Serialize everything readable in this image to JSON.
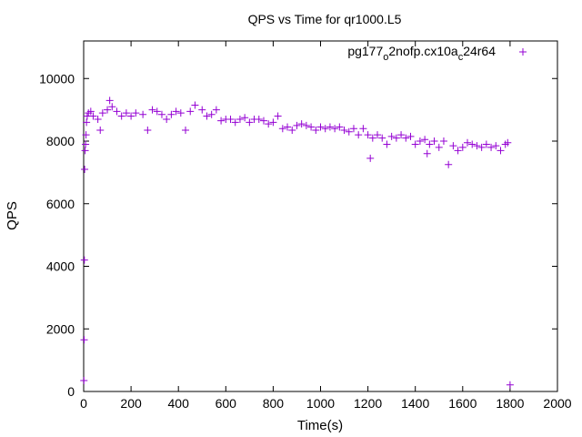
{
  "chart_data": {
    "type": "scatter",
    "title": "QPS vs Time for qr1000.L5",
    "xlabel": "Time(s)",
    "ylabel": "QPS",
    "xlim": [
      0,
      2000
    ],
    "ylim": [
      0,
      11200
    ],
    "xticks": [
      0,
      200,
      400,
      600,
      800,
      1000,
      1200,
      1400,
      1600,
      1800,
      2000
    ],
    "yticks": [
      0,
      2000,
      4000,
      6000,
      8000,
      10000
    ],
    "legend_position": "top-right",
    "series": [
      {
        "name": "pg177_o2nofp.cx10a_c24r64",
        "name_parts": {
          "base": "pg177",
          "sub1": "o",
          "mid": "2nofp.cx10a",
          "sub2": "c",
          "tail": "24r64"
        },
        "color": "#9400d3",
        "marker": "plus",
        "points": [
          [
            1,
            350
          ],
          [
            2,
            1650
          ],
          [
            3,
            4200
          ],
          [
            4,
            7100
          ],
          [
            6,
            7700
          ],
          [
            8,
            7900
          ],
          [
            10,
            8200
          ],
          [
            12,
            8600
          ],
          [
            15,
            8800
          ],
          [
            20,
            8900
          ],
          [
            30,
            8950
          ],
          [
            40,
            8800
          ],
          [
            60,
            8700
          ],
          [
            70,
            8350
          ],
          [
            80,
            8900
          ],
          [
            100,
            9000
          ],
          [
            110,
            9300
          ],
          [
            120,
            9100
          ],
          [
            140,
            8950
          ],
          [
            160,
            8800
          ],
          [
            180,
            8900
          ],
          [
            200,
            8800
          ],
          [
            220,
            8900
          ],
          [
            250,
            8850
          ],
          [
            270,
            8350
          ],
          [
            290,
            9000
          ],
          [
            310,
            8950
          ],
          [
            330,
            8850
          ],
          [
            350,
            8700
          ],
          [
            370,
            8850
          ],
          [
            390,
            8950
          ],
          [
            410,
            8900
          ],
          [
            430,
            8350
          ],
          [
            450,
            8950
          ],
          [
            470,
            9150
          ],
          [
            500,
            9000
          ],
          [
            520,
            8800
          ],
          [
            540,
            8850
          ],
          [
            560,
            9000
          ],
          [
            580,
            8650
          ],
          [
            600,
            8700
          ],
          [
            620,
            8700
          ],
          [
            640,
            8600
          ],
          [
            660,
            8700
          ],
          [
            680,
            8750
          ],
          [
            700,
            8600
          ],
          [
            720,
            8700
          ],
          [
            740,
            8700
          ],
          [
            760,
            8650
          ],
          [
            780,
            8550
          ],
          [
            800,
            8600
          ],
          [
            820,
            8800
          ],
          [
            840,
            8400
          ],
          [
            860,
            8450
          ],
          [
            880,
            8350
          ],
          [
            900,
            8500
          ],
          [
            920,
            8550
          ],
          [
            940,
            8500
          ],
          [
            960,
            8450
          ],
          [
            980,
            8350
          ],
          [
            1000,
            8450
          ],
          [
            1020,
            8400
          ],
          [
            1040,
            8450
          ],
          [
            1060,
            8400
          ],
          [
            1080,
            8450
          ],
          [
            1100,
            8350
          ],
          [
            1120,
            8300
          ],
          [
            1140,
            8400
          ],
          [
            1160,
            8200
          ],
          [
            1180,
            8400
          ],
          [
            1200,
            8200
          ],
          [
            1210,
            7450
          ],
          [
            1220,
            8100
          ],
          [
            1240,
            8200
          ],
          [
            1260,
            8100
          ],
          [
            1280,
            7900
          ],
          [
            1300,
            8150
          ],
          [
            1320,
            8100
          ],
          [
            1340,
            8200
          ],
          [
            1360,
            8100
          ],
          [
            1380,
            8150
          ],
          [
            1400,
            7900
          ],
          [
            1420,
            8000
          ],
          [
            1440,
            8050
          ],
          [
            1450,
            7600
          ],
          [
            1460,
            7900
          ],
          [
            1480,
            8000
          ],
          [
            1500,
            7800
          ],
          [
            1520,
            8000
          ],
          [
            1540,
            7250
          ],
          [
            1560,
            7850
          ],
          [
            1580,
            7700
          ],
          [
            1600,
            7800
          ],
          [
            1620,
            7950
          ],
          [
            1640,
            7900
          ],
          [
            1660,
            7850
          ],
          [
            1680,
            7800
          ],
          [
            1700,
            7900
          ],
          [
            1720,
            7800
          ],
          [
            1740,
            7850
          ],
          [
            1760,
            7700
          ],
          [
            1780,
            7900
          ],
          [
            1790,
            7950
          ],
          [
            1800,
            210
          ]
        ]
      }
    ]
  }
}
